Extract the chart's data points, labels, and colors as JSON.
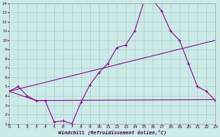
{
  "xlabel": "Windchill (Refroidissement éolien,°C)",
  "bg_color": "#cceae8",
  "grid_color": "#aacccc",
  "line_color": "#880088",
  "xlim": [
    0,
    23
  ],
  "ylim": [
    1,
    14
  ],
  "xticks": [
    0,
    1,
    2,
    3,
    4,
    5,
    6,
    7,
    8,
    9,
    10,
    11,
    12,
    13,
    14,
    15,
    16,
    17,
    18,
    19,
    20,
    21,
    22,
    23
  ],
  "yticks": [
    1,
    2,
    3,
    4,
    5,
    6,
    7,
    8,
    9,
    10,
    11,
    12,
    13,
    14
  ],
  "line1_x": [
    0,
    1,
    2,
    3,
    4,
    5,
    6,
    7,
    8,
    9,
    10,
    11,
    12,
    13,
    14,
    15,
    16,
    17,
    18,
    19,
    20,
    21,
    22,
    23
  ],
  "line1_y": [
    4.5,
    5.0,
    4.0,
    3.5,
    3.5,
    1.2,
    1.3,
    1.0,
    3.3,
    5.2,
    6.5,
    7.5,
    9.2,
    9.5,
    11.0,
    14.1,
    14.3,
    13.2,
    11.0,
    10.0,
    7.5,
    5.0,
    4.5,
    3.5
  ],
  "line2_x": [
    0,
    23
  ],
  "line2_y": [
    4.5,
    10.0
  ],
  "line3_x": [
    0,
    3,
    23
  ],
  "line3_y": [
    4.5,
    3.5,
    3.6
  ]
}
